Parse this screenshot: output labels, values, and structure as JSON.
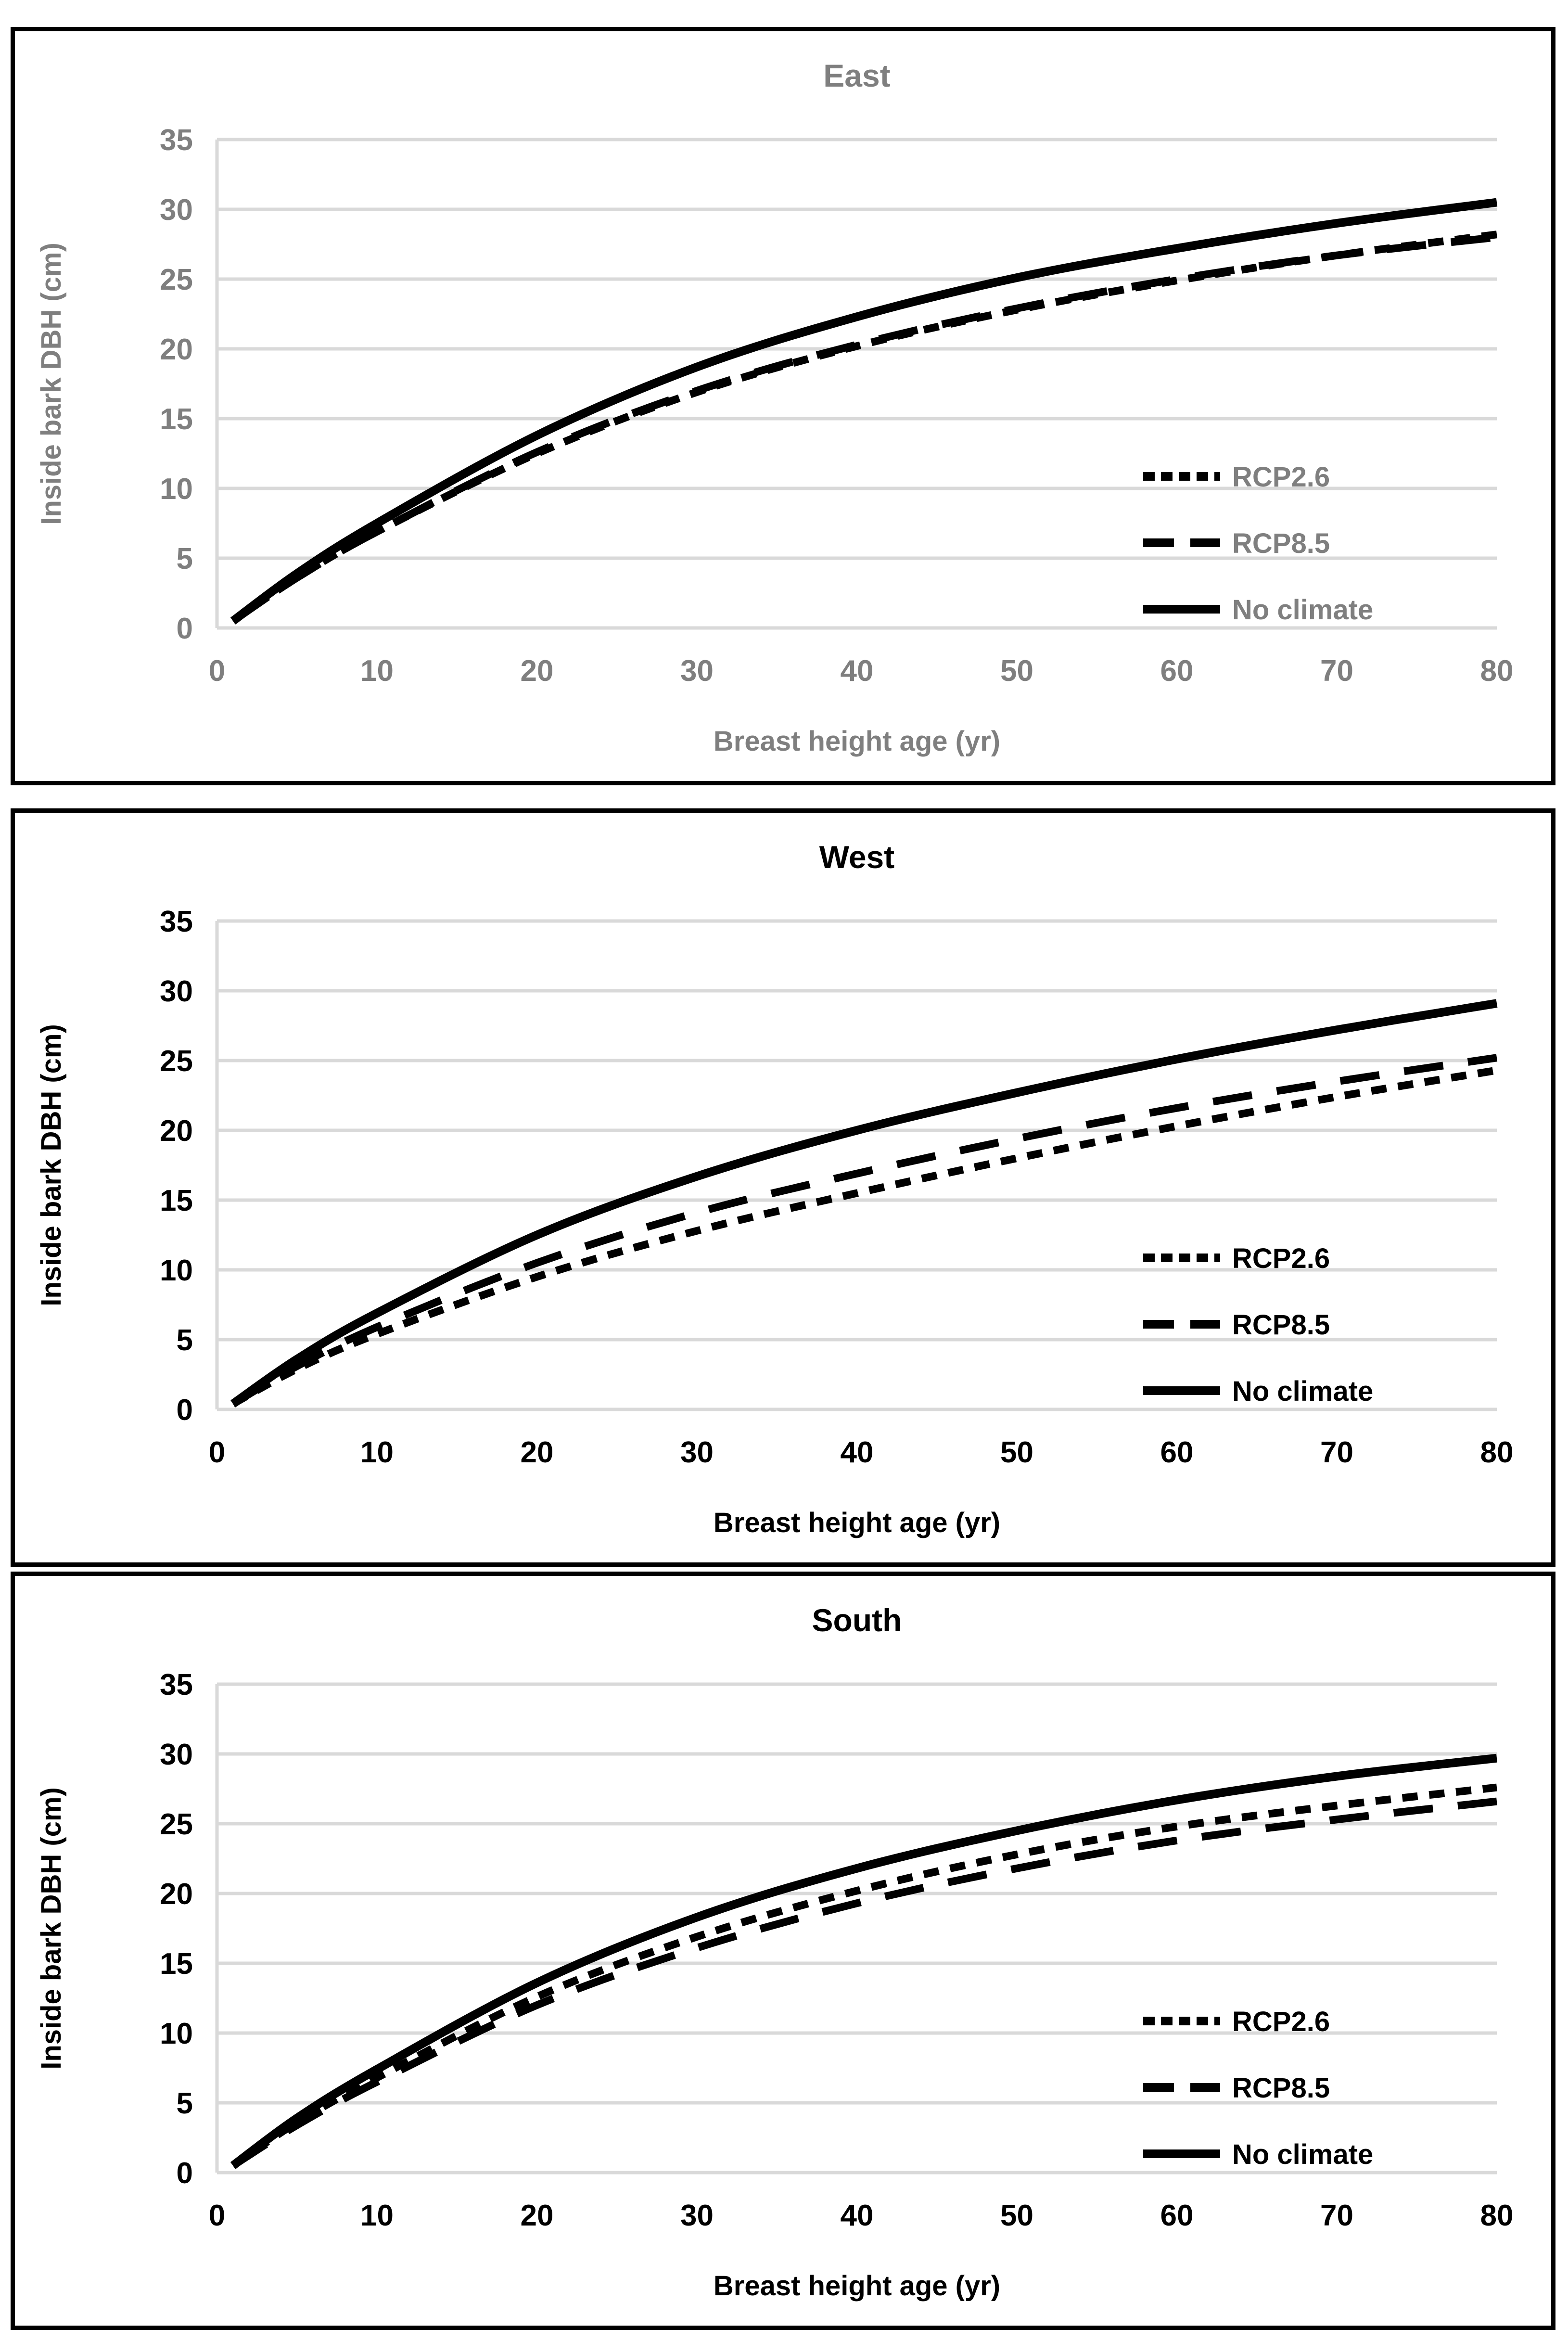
{
  "figure": {
    "description": "Three stacked line charts of projected inside-bark diameter growth by aspect",
    "panel_order": [
      "east",
      "west",
      "south"
    ],
    "line_color": "#000000",
    "grid_color": "#d9d9d9",
    "border_color": "#000000"
  },
  "chart_data": [
    {
      "id": "east",
      "type": "line",
      "title": "East",
      "xlabel": "Breast height age (yr)",
      "ylabel": "Inside bark DBH (cm)",
      "xlim": [
        0,
        80
      ],
      "ylim": [
        0,
        35
      ],
      "x_ticks": [
        0,
        10,
        20,
        30,
        40,
        50,
        60,
        70,
        80
      ],
      "y_ticks": [
        0,
        5,
        10,
        15,
        20,
        25,
        30,
        35
      ],
      "grid": true,
      "legend_position": "inside-right",
      "text_color": "#7f7f7f",
      "x": [
        1,
        5,
        10,
        20,
        30,
        40,
        50,
        60,
        70,
        80
      ],
      "series": [
        {
          "name": "RCP2.6",
          "dash": "short",
          "values": [
            0.5,
            3.6,
            6.9,
            12.5,
            16.9,
            20.2,
            22.8,
            24.9,
            26.7,
            28.2
          ]
        },
        {
          "name": "RCP8.5",
          "dash": "long",
          "values": [
            0.5,
            3.6,
            6.9,
            12.6,
            17.0,
            20.3,
            22.9,
            25.0,
            26.7,
            28.0
          ]
        },
        {
          "name": "No climate",
          "dash": "solid",
          "values": [
            0.5,
            3.9,
            7.5,
            13.8,
            18.7,
            22.3,
            25.1,
            27.2,
            29.0,
            30.5
          ]
        }
      ]
    },
    {
      "id": "west",
      "type": "line",
      "title": "West",
      "xlabel": "Breast height age (yr)",
      "ylabel": "Inside bark DBH (cm)",
      "xlim": [
        0,
        80
      ],
      "ylim": [
        0,
        35
      ],
      "x_ticks": [
        0,
        10,
        20,
        30,
        40,
        50,
        60,
        70,
        80
      ],
      "y_ticks": [
        0,
        5,
        10,
        15,
        20,
        25,
        30,
        35
      ],
      "grid": true,
      "legend_position": "inside-right",
      "text_color": "#000000",
      "x": [
        1,
        5,
        10,
        20,
        30,
        40,
        50,
        60,
        70,
        80
      ],
      "series": [
        {
          "name": "RCP2.6",
          "dash": "short",
          "values": [
            0.4,
            2.9,
            5.4,
            9.5,
            12.8,
            15.5,
            18.0,
            20.3,
            22.4,
            24.3
          ]
        },
        {
          "name": "RCP8.5",
          "dash": "long",
          "values": [
            0.4,
            3.1,
            5.9,
            10.5,
            14.1,
            16.9,
            19.4,
            21.6,
            23.5,
            25.2
          ]
        },
        {
          "name": "No climate",
          "dash": "solid",
          "values": [
            0.4,
            3.6,
            6.9,
            12.5,
            16.7,
            20.0,
            22.7,
            25.1,
            27.2,
            29.1
          ]
        }
      ]
    },
    {
      "id": "south",
      "type": "line",
      "title": "South",
      "xlabel": "Breast height age (yr)",
      "ylabel": "Inside bark DBH (cm)",
      "xlim": [
        0,
        80
      ],
      "ylim": [
        0,
        35
      ],
      "x_ticks": [
        0,
        10,
        20,
        30,
        40,
        50,
        60,
        70,
        80
      ],
      "y_ticks": [
        0,
        5,
        10,
        15,
        20,
        25,
        30,
        35
      ],
      "grid": true,
      "legend_position": "inside-right",
      "text_color": "#000000",
      "x": [
        1,
        5,
        10,
        20,
        30,
        40,
        50,
        60,
        70,
        80
      ],
      "series": [
        {
          "name": "RCP2.6",
          "dash": "short",
          "values": [
            0.5,
            3.6,
            6.8,
            12.6,
            16.9,
            20.2,
            22.8,
            24.8,
            26.3,
            27.6
          ]
        },
        {
          "name": "RCP8.5",
          "dash": "long",
          "values": [
            0.5,
            3.4,
            6.5,
            12.0,
            16.1,
            19.3,
            21.8,
            23.8,
            25.3,
            26.6
          ]
        },
        {
          "name": "No climate",
          "dash": "solid",
          "values": [
            0.5,
            3.9,
            7.4,
            13.6,
            18.3,
            21.8,
            24.5,
            26.7,
            28.4,
            29.7
          ]
        }
      ]
    }
  ]
}
